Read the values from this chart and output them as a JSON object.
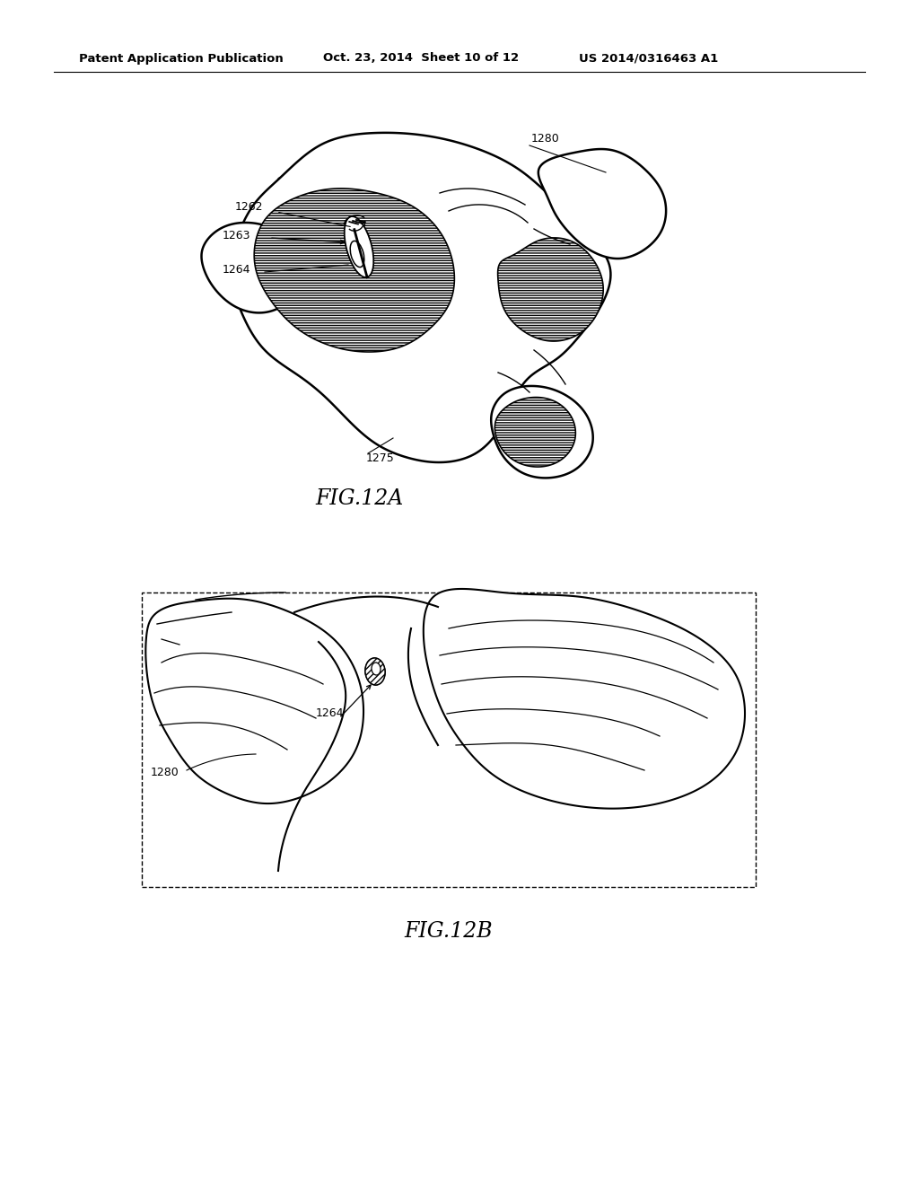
{
  "header_left": "Patent Application Publication",
  "header_mid": "Oct. 23, 2014  Sheet 10 of 12",
  "header_right": "US 2014/0316463 A1",
  "fig_a_label": "FIG.12A",
  "fig_b_label": "FIG.12B",
  "bg_color": "#ffffff",
  "line_color": "#000000"
}
